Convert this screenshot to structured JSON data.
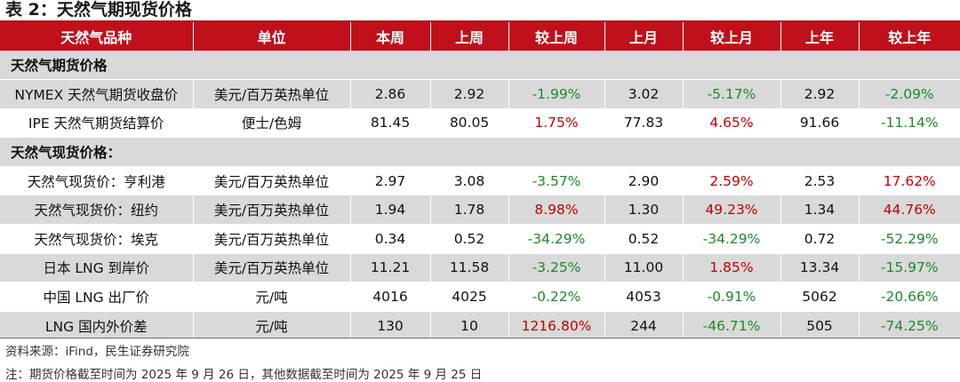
{
  "title": "表 2：天然气期现货价格",
  "columns": [
    "天然气品种",
    "单位",
    "本周",
    "上周",
    "较上周",
    "上月",
    "较上月",
    "上年",
    "较上年"
  ],
  "rows": [
    {
      "type": "section",
      "label": "天然气期货价格"
    },
    {
      "type": "data",
      "name": "NYMEX 天然气期货收盘价",
      "unit": "美元/百万英热单位",
      "this_week": "2.86",
      "last_week": "2.92",
      "wow": "-1.99%",
      "last_month": "3.02",
      "mom": "-5.17%",
      "last_year": "2.92",
      "yoy": "-2.09%"
    },
    {
      "type": "data",
      "name": "IPE 天然气期货结算价",
      "unit": "便士/色姆",
      "this_week": "81.45",
      "last_week": "80.05",
      "wow": "1.75%",
      "last_month": "77.83",
      "mom": "4.65%",
      "last_year": "91.66",
      "yoy": "-11.14%"
    },
    {
      "type": "section",
      "label": "天然气现货价格："
    },
    {
      "type": "data",
      "name": "天然气现货价：亨利港",
      "unit": "美元/百万英热单位",
      "this_week": "2.97",
      "last_week": "3.08",
      "wow": "-3.57%",
      "last_month": "2.90",
      "mom": "2.59%",
      "last_year": "2.53",
      "yoy": "17.62%"
    },
    {
      "type": "data",
      "name": "天然气现货价：纽约",
      "unit": "美元/百万英热单位",
      "this_week": "1.94",
      "last_week": "1.78",
      "wow": "8.98%",
      "last_month": "1.30",
      "mom": "49.23%",
      "last_year": "1.34",
      "yoy": "44.76%"
    },
    {
      "type": "data",
      "name": "天然气现货价：埃克",
      "unit": "美元/百万英热单位",
      "this_week": "0.34",
      "last_week": "0.52",
      "wow": "-34.29%",
      "last_month": "0.52",
      "mom": "-34.29%",
      "last_year": "0.72",
      "yoy": "-52.29%"
    },
    {
      "type": "data",
      "name": "日本 LNG 到岸价",
      "unit": "美元/百万英热单位",
      "this_week": "11.21",
      "last_week": "11.58",
      "wow": "-3.25%",
      "last_month": "11.00",
      "mom": "1.85%",
      "last_year": "13.34",
      "yoy": "-15.97%"
    },
    {
      "type": "data",
      "name": "中国 LNG 出厂价",
      "unit": "元/吨",
      "this_week": "4016",
      "last_week": "4025",
      "wow": "-0.22%",
      "last_month": "4053",
      "mom": "-0.91%",
      "last_year": "5062",
      "yoy": "-20.66%"
    },
    {
      "type": "data",
      "name": "LNG 国内外价差",
      "unit": "元/吨",
      "this_week": "130",
      "last_week": "10",
      "wow": "1216.80%",
      "last_month": "244",
      "mom": "-46.71%",
      "last_year": "505",
      "yoy": "-74.25%"
    }
  ],
  "source": "资料来源：iFind，民生证券研究院",
  "note": "注：期货价格截至时间为 2025 年 9 月 26 日，其他数据截至时间为 2025 年 9 月 25 日",
  "colors": {
    "header_bg": "#c0101b",
    "shade_bg": "#d9d9d9",
    "positive": "#c00000",
    "negative": "#1a8a2a"
  }
}
